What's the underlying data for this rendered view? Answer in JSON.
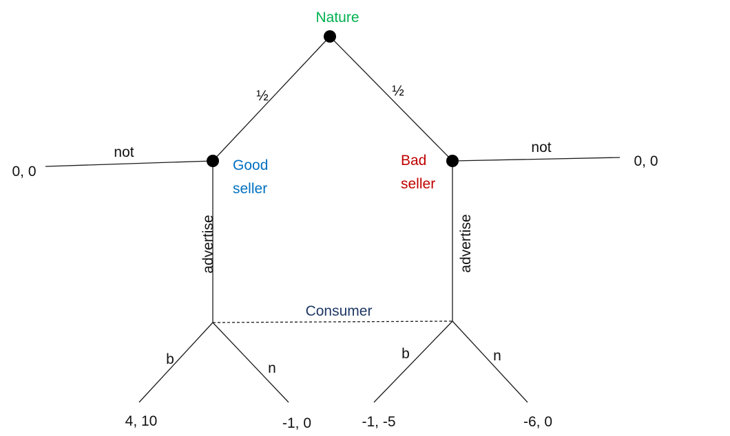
{
  "nodes": {
    "nature": "Nature",
    "good_seller": [
      "Good",
      "seller"
    ],
    "bad_seller": [
      "Bad",
      "seller"
    ],
    "consumer": "Consumer"
  },
  "edges": {
    "prob_left": "½",
    "prob_right": "½",
    "good_not": "not",
    "bad_not": "not",
    "good_advertise": "advertise",
    "bad_advertise": "advertise",
    "good_b": "b",
    "good_n": "n",
    "bad_b": "b",
    "bad_n": "n"
  },
  "payoffs": {
    "good_not": "0, 0",
    "bad_not": "0, 0",
    "good_b": "4, 10",
    "good_n": "-1, 0",
    "bad_b": "-1, -5",
    "bad_n": "-6, 0"
  },
  "colors": {
    "nature": "#00b050",
    "good_seller": "#0070c0",
    "bad_seller": "#c00000",
    "consumer": "#1f3864"
  }
}
